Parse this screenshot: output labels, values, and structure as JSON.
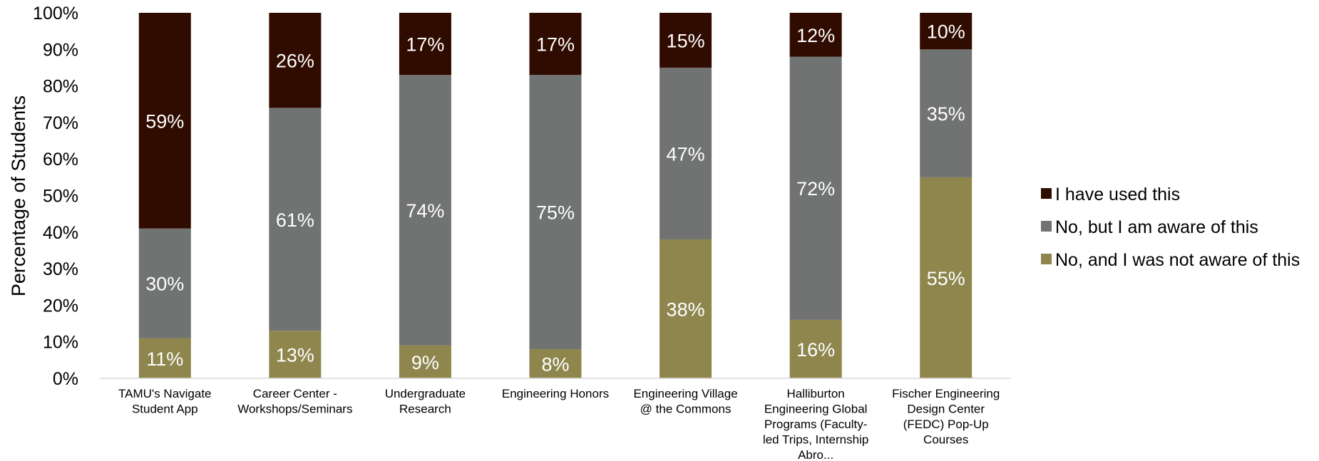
{
  "chart_data": {
    "type": "bar",
    "stacked": true,
    "percent_stacked": true,
    "ylabel": "Percentage of Students",
    "xlabel": "",
    "ylim": [
      0,
      100
    ],
    "yticks": [
      "0%",
      "10%",
      "20%",
      "30%",
      "40%",
      "50%",
      "60%",
      "70%",
      "80%",
      "90%",
      "100%"
    ],
    "categories": [
      [
        "TAMU's Navigate",
        "Student App"
      ],
      [
        "Career Center -",
        "Workshops/Seminars"
      ],
      [
        "Undergraduate",
        "Research"
      ],
      [
        "Engineering Honors"
      ],
      [
        "Engineering Village",
        "@ the Commons"
      ],
      [
        "Halliburton",
        "Engineering Global",
        "Programs (Faculty-",
        "led Trips, Internship",
        "Abro..."
      ],
      [
        "Fischer Engineering",
        "Design Center",
        "(FEDC) Pop-Up",
        "Courses"
      ]
    ],
    "series": [
      {
        "name": "No, and I was not aware of this",
        "color": "#8f864e",
        "values": [
          11,
          13,
          9,
          8,
          38,
          16,
          55
        ],
        "labels": [
          "11%",
          "13%",
          "9%",
          "8%",
          "38%",
          "16%",
          "55%"
        ]
      },
      {
        "name": "No, but I am aware of this",
        "color": "#707372",
        "values": [
          30,
          61,
          74,
          75,
          47,
          72,
          35
        ],
        "labels": [
          "30%",
          "61%",
          "74%",
          "75%",
          "47%",
          "72%",
          "35%"
        ]
      },
      {
        "name": "I have used this",
        "color": "#300b00",
        "values": [
          59,
          26,
          17,
          17,
          15,
          12,
          10
        ],
        "labels": [
          "59%",
          "26%",
          "17%",
          "17%",
          "15%",
          "12%",
          "10%"
        ]
      }
    ],
    "legend_order": [
      "I have used this",
      "No, but I am aware of this",
      "No, and I was not aware of this"
    ],
    "legend_position": "right",
    "grid": false
  }
}
